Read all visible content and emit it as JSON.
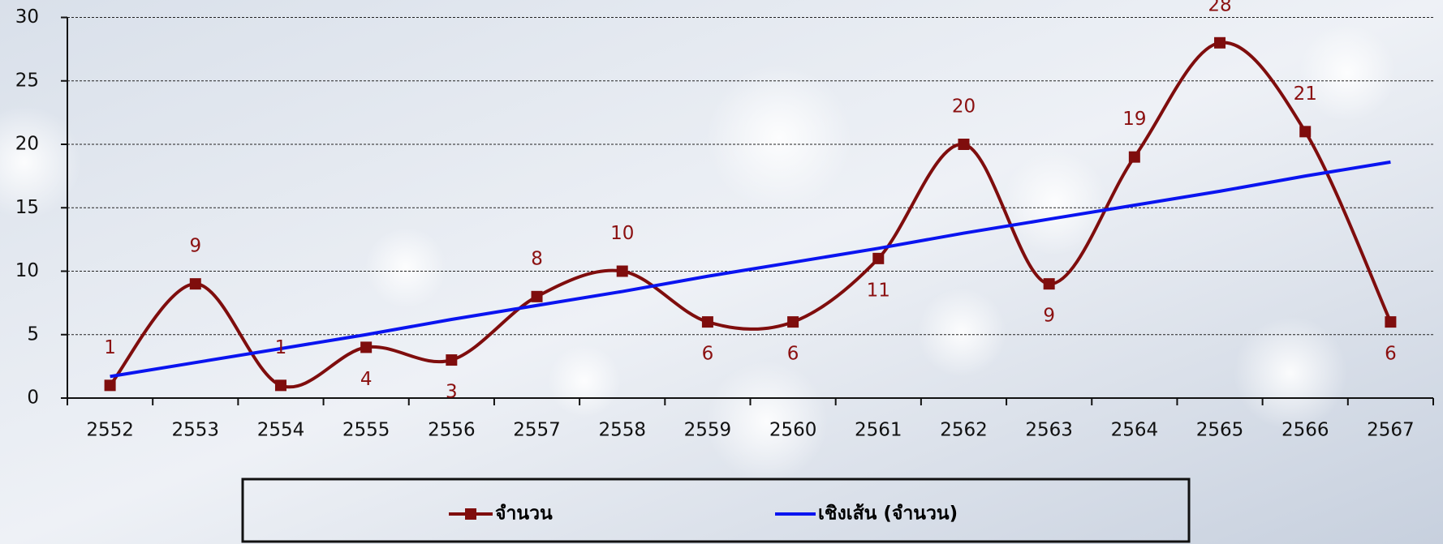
{
  "chart_data": {
    "type": "line",
    "categories": [
      "2552",
      "2553",
      "2554",
      "2555",
      "2556",
      "2557",
      "2558",
      "2559",
      "2560",
      "2561",
      "2562",
      "2563",
      "2564",
      "2565",
      "2566",
      "2567"
    ],
    "series": [
      {
        "name": "จำนวน",
        "color": "#7f0d0d",
        "values": [
          1,
          9,
          1,
          4,
          3,
          8,
          10,
          6,
          6,
          11,
          20,
          9,
          19,
          28,
          21,
          6
        ]
      },
      {
        "name": "เชิงเส้น (จำนวน)",
        "color": "#0a14f0",
        "values": [
          1.7,
          2.8,
          3.9,
          5.0,
          6.2,
          7.3,
          8.4,
          9.6,
          10.7,
          11.8,
          13.0,
          14.1,
          15.2,
          16.3,
          17.5,
          18.6
        ]
      }
    ],
    "ylim": [
      0,
      30
    ],
    "yticks": [
      0,
      5,
      10,
      15,
      20,
      25,
      30
    ],
    "grid": true,
    "legend": "bottom"
  }
}
